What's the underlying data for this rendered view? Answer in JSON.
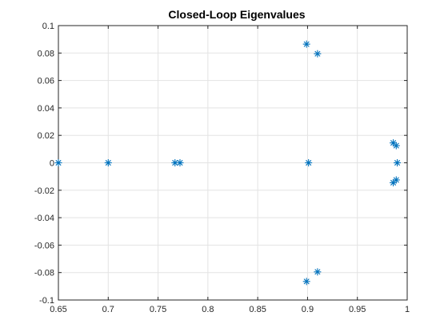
{
  "chart_data": {
    "type": "scatter",
    "title": "Closed-Loop Eigenvalues",
    "xlabel": "",
    "ylabel": "",
    "xlim": [
      0.65,
      1
    ],
    "ylim": [
      -0.1,
      0.1
    ],
    "grid": true,
    "marker": "*",
    "color": "#0072BD",
    "x_ticks": [
      "0.65",
      "0.7",
      "0.75",
      "0.8",
      "0.85",
      "0.9",
      "0.95",
      "1"
    ],
    "y_ticks": [
      "-0.1",
      "-0.08",
      "-0.06",
      "-0.04",
      "-0.02",
      "0",
      "0.02",
      "0.04",
      "0.06",
      "0.08",
      "0.1"
    ],
    "series": [
      {
        "points": [
          {
            "x": 0.65,
            "y": 0
          },
          {
            "x": 0.7,
            "y": 0
          },
          {
            "x": 0.767,
            "y": 0
          },
          {
            "x": 0.772,
            "y": 0
          },
          {
            "x": 0.901,
            "y": 0
          },
          {
            "x": 0.899,
            "y": 0.0865
          },
          {
            "x": 0.91,
            "y": 0.0795
          },
          {
            "x": 0.899,
            "y": -0.0865
          },
          {
            "x": 0.91,
            "y": -0.0795
          },
          {
            "x": 0.986,
            "y": 0.0145
          },
          {
            "x": 0.989,
            "y": 0.0125
          },
          {
            "x": 0.99,
            "y": 0
          },
          {
            "x": 0.986,
            "y": -0.0145
          },
          {
            "x": 0.989,
            "y": -0.0125
          }
        ]
      }
    ]
  }
}
